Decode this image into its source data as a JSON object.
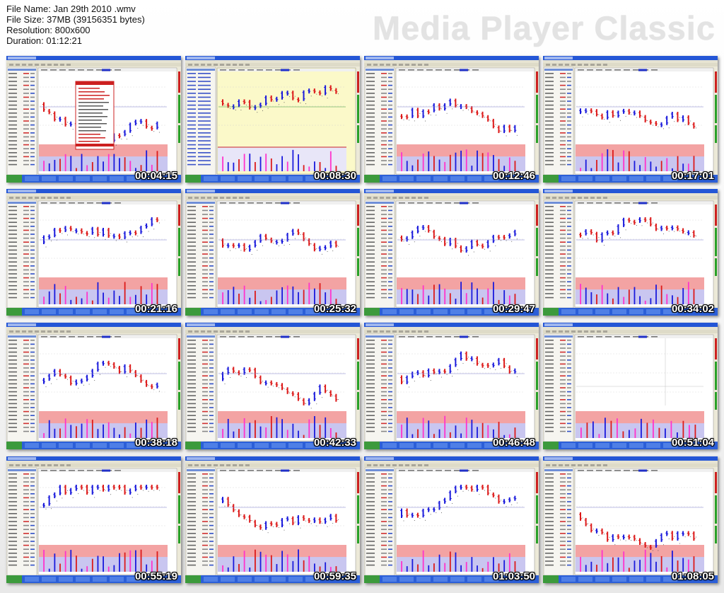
{
  "header": {
    "file_name": "File Name: Jan 29th 2010 .wmv",
    "file_size": "File Size: 37MB (39156351 bytes)",
    "resolution": "Resolution: 800x600",
    "duration": "Duration: 01:12:21",
    "player_name": "Media Player Classic"
  },
  "colors": {
    "bull": "#1a1adc",
    "bear": "#dc1a1a",
    "titlebar": "#2456d6",
    "taskbar": "#2c5fd8",
    "volume_bg": "#f3a3a3"
  },
  "thumbnails": [
    {
      "timestamp": "00:04:15",
      "style": "dialog"
    },
    {
      "timestamp": "00:08:30",
      "style": "yellow"
    },
    {
      "timestamp": "00:12:46",
      "style": "normal"
    },
    {
      "timestamp": "00:17:01",
      "style": "normal"
    },
    {
      "timestamp": "00:21:16",
      "style": "normal"
    },
    {
      "timestamp": "00:25:32",
      "style": "normal"
    },
    {
      "timestamp": "00:29:47",
      "style": "normal"
    },
    {
      "timestamp": "00:34:02",
      "style": "normal"
    },
    {
      "timestamp": "00:38:18",
      "style": "normal"
    },
    {
      "timestamp": "00:42:33",
      "style": "normal"
    },
    {
      "timestamp": "00:46:48",
      "style": "normal"
    },
    {
      "timestamp": "00:51:04",
      "style": "blank"
    },
    {
      "timestamp": "00:55:19",
      "style": "normal"
    },
    {
      "timestamp": "00:59:35",
      "style": "normal"
    },
    {
      "timestamp": "01:03:50",
      "style": "normal"
    },
    {
      "timestamp": "01:08:05",
      "style": "normal"
    }
  ]
}
